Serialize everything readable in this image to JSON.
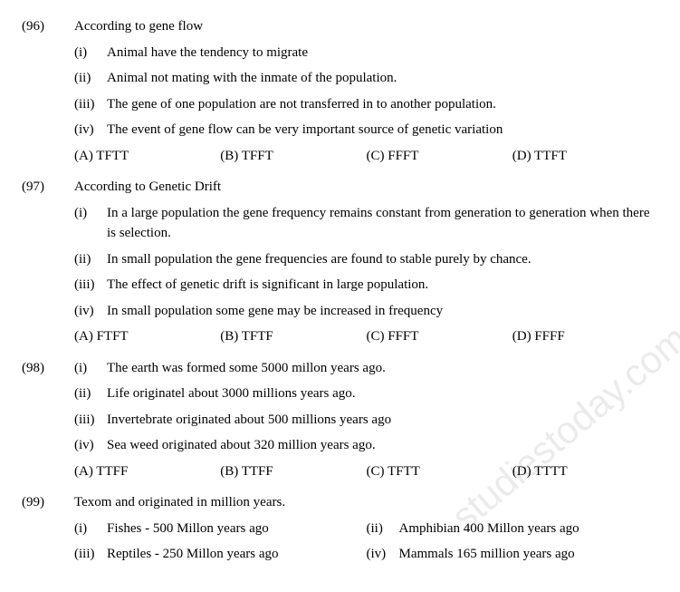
{
  "watermark": "studiestoday.com",
  "questions": [
    {
      "num": "(96)",
      "stem": "According to gene flow",
      "subs": [
        {
          "m": "(i)",
          "t": "Animal have the tendency to migrate"
        },
        {
          "m": "(ii)",
          "t": "Animal not mating with the inmate of the population."
        },
        {
          "m": "(iii)",
          "t": "The gene of one population are not transferred in to another population."
        },
        {
          "m": "(iv)",
          "t": "The event of gene flow can be very important source of genetic variation"
        }
      ],
      "choices": [
        "(A) TFTT",
        "(B) TFFT",
        "(C) FFFT",
        "(D) TTFT"
      ]
    },
    {
      "num": "(97)",
      "stem": "According to Genetic Drift",
      "subs": [
        {
          "m": "(i)",
          "t": "In a large population the gene frequency remains constant from generation to generation when there is selection."
        },
        {
          "m": "(ii)",
          "t": "In small population the gene frequencies are found to stable purely by chance."
        },
        {
          "m": "(iii)",
          "t": "The effect of genetic drift is significant in large population."
        },
        {
          "m": "(iv)",
          "t": "In small population some gene may be increased in frequency"
        }
      ],
      "choices": [
        "(A) FTFT",
        "(B) TFTF",
        "(C) FFFT",
        "(D) FFFF"
      ]
    },
    {
      "num": "(98)",
      "stem_inline": {
        "m": "(i)",
        "t": "The earth was formed some 5000 millon years ago."
      },
      "subs": [
        {
          "m": "(ii)",
          "t": "Life originatel about 3000 millions years ago."
        },
        {
          "m": "(iii)",
          "t": "Invertebrate originated about 500 millions years ago"
        },
        {
          "m": "(iv)",
          "t": "Sea weed originated about 320 million years ago."
        }
      ],
      "choices": [
        "(A) TTFF",
        "(B) TTFF",
        "(C) TFTT",
        "(D) TTTT"
      ]
    },
    {
      "num": "(99)",
      "stem": "Texom and originated in million years.",
      "pairs": [
        [
          {
            "m": "(i)",
            "t": "Fishes - 500 Millon years ago"
          },
          {
            "m": "(ii)",
            "t": "Amphibian 400 Millon years ago"
          }
        ],
        [
          {
            "m": "(iii)",
            "t": "Reptiles - 250 Millon years ago"
          },
          {
            "m": "(iv)",
            "t": "Mammals 165 million years ago"
          }
        ]
      ]
    }
  ]
}
